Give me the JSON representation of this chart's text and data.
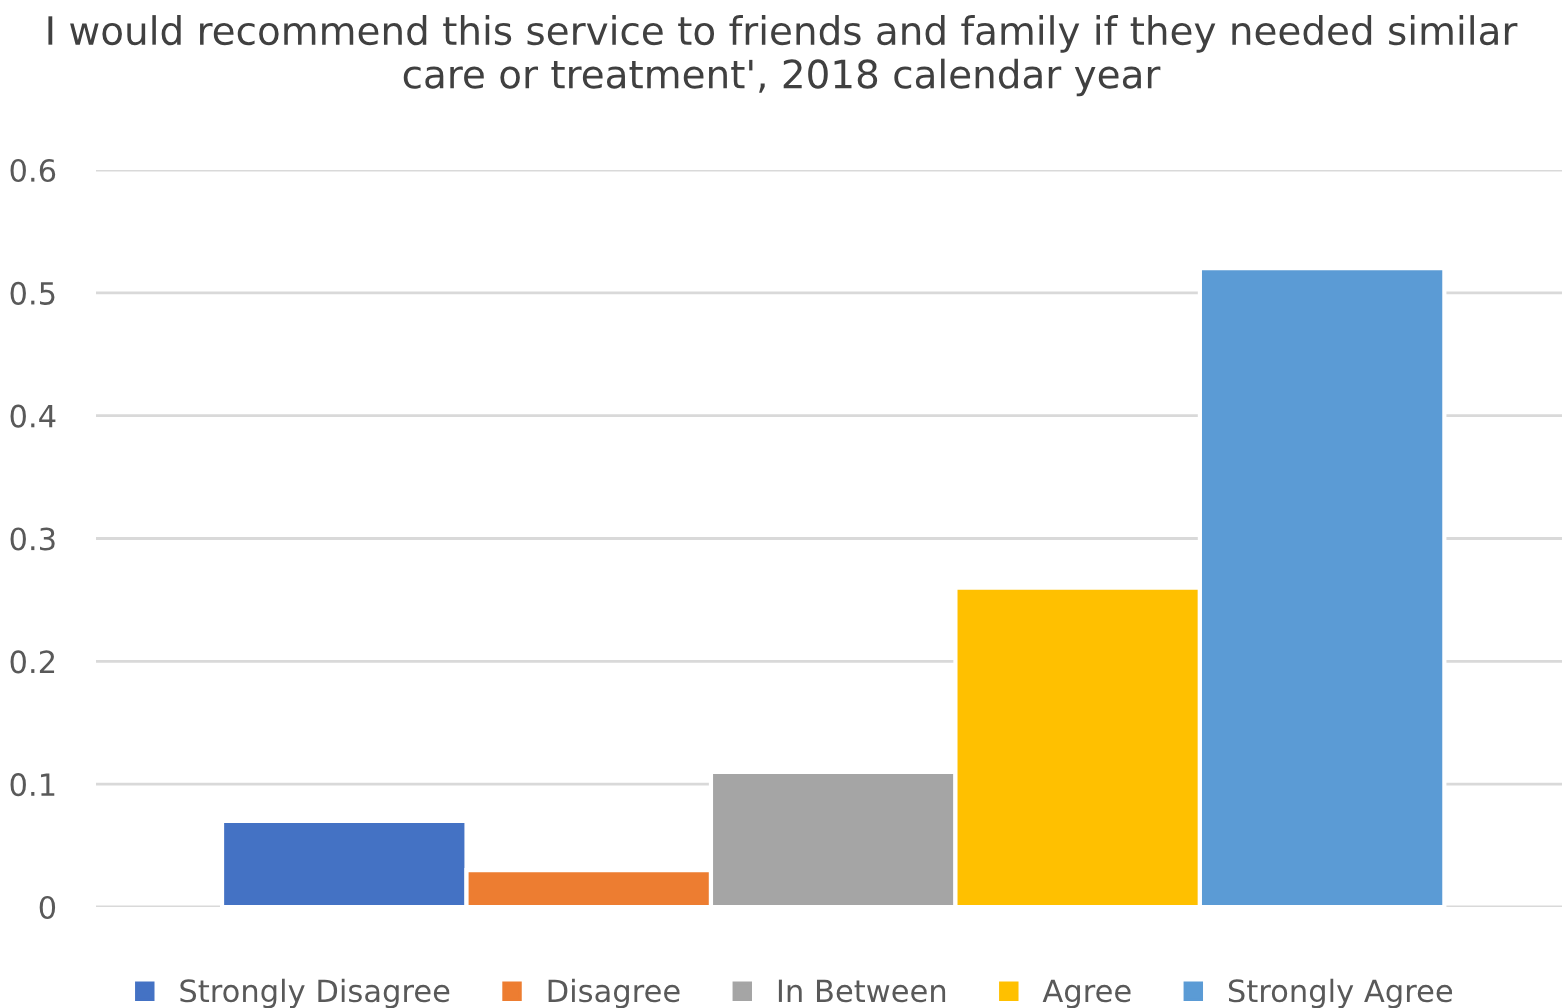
{
  "chart_data": {
    "type": "bar",
    "title": "I would recommend this service to friends and family if they needed similar care or treatment', 2018 calendar year",
    "categories": [
      null
    ],
    "series": [
      {
        "name": "Strongly Disagree",
        "color": "#4472c4",
        "values": [
          0.07
        ]
      },
      {
        "name": "Disagree",
        "color": "#ed7d31",
        "values": [
          0.03
        ]
      },
      {
        "name": "In Between",
        "color": "#a5a5a5",
        "values": [
          0.11
        ]
      },
      {
        "name": "Agree",
        "color": "#ffc000",
        "values": [
          0.26
        ]
      },
      {
        "name": "Strongly Agree",
        "color": "#5b9bd5",
        "values": [
          0.52
        ]
      }
    ],
    "ylim": [
      0,
      0.6
    ],
    "yticks": [
      0,
      0.1,
      0.2,
      0.3,
      0.4,
      0.5,
      0.6
    ],
    "grid": "y",
    "legend": "bottom"
  }
}
